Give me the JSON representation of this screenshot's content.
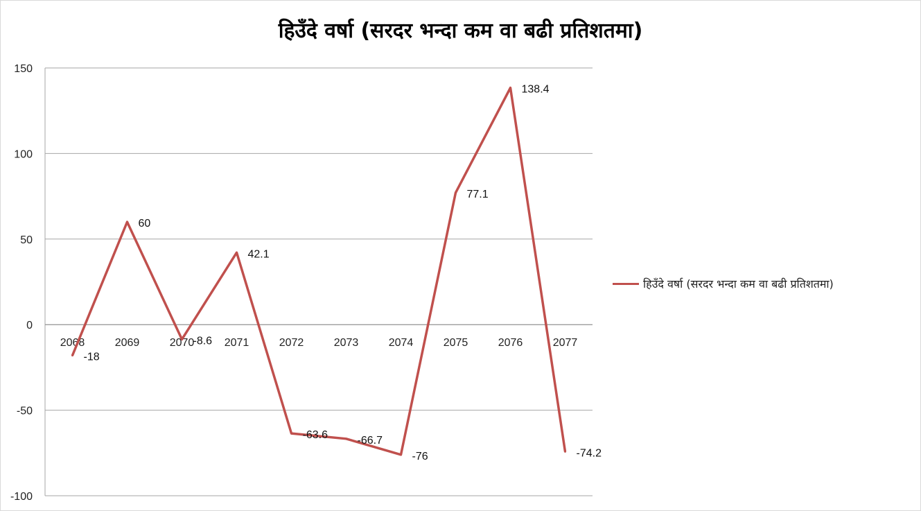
{
  "chart_data": {
    "type": "line",
    "title": "हिउँदे वर्षा (सरदर भन्दा कम वा बढी प्रतिशतमा)",
    "categories": [
      "2068",
      "2069",
      "2070",
      "2071",
      "2072",
      "2073",
      "2074",
      "2075",
      "2076",
      "2077"
    ],
    "series": [
      {
        "name": "हिउँदे वर्षा (सरदर भन्दा कम वा बढी प्रतिशतमा)",
        "values": [
          -18,
          60,
          -8.6,
          42.1,
          -63.6,
          -66.7,
          -76,
          77.1,
          138.4,
          -74.2
        ],
        "color": "#c0504d"
      }
    ],
    "ylim": [
      -100,
      150
    ],
    "yticks": [
      -100,
      -50,
      0,
      50,
      100,
      150
    ],
    "grid": true,
    "legend_position": "right",
    "xlabel": "",
    "ylabel": ""
  }
}
